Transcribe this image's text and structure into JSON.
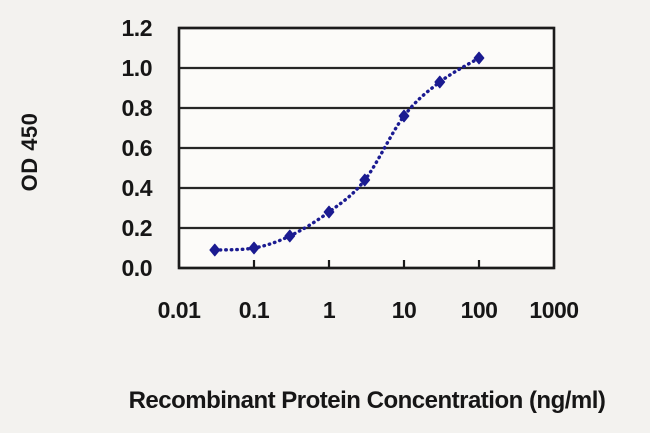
{
  "chart_data": {
    "type": "line",
    "title": "",
    "xlabel": "Recombinant Protein Concentration (ng/ml)",
    "ylabel": "OD 450",
    "x_scale": "log",
    "xlim": [
      0.01,
      1000
    ],
    "ylim": [
      0,
      1.2
    ],
    "xticks": [
      "0.01",
      "0.1",
      "1",
      "10",
      "100",
      "1000"
    ],
    "yticks": [
      "0.0",
      "0.2",
      "0.4",
      "0.6",
      "0.8",
      "1.0",
      "1.2"
    ],
    "grid": "horizontal",
    "legend": "none",
    "line_style": "dotted",
    "marker": "diamond",
    "series": [
      {
        "name": "OD 450",
        "x": [
          0.03,
          0.1,
          0.3,
          1,
          3,
          10,
          30,
          100
        ],
        "y": [
          0.09,
          0.1,
          0.16,
          0.28,
          0.44,
          0.76,
          0.93,
          1.05
        ]
      }
    ]
  },
  "colors": {
    "curve": "#1b1b91",
    "grid": "#262626",
    "axis": "#1b1b1b",
    "text": "#161616",
    "plot_bg": "#fcfbf9",
    "page_bg": "#f3f2ef"
  }
}
